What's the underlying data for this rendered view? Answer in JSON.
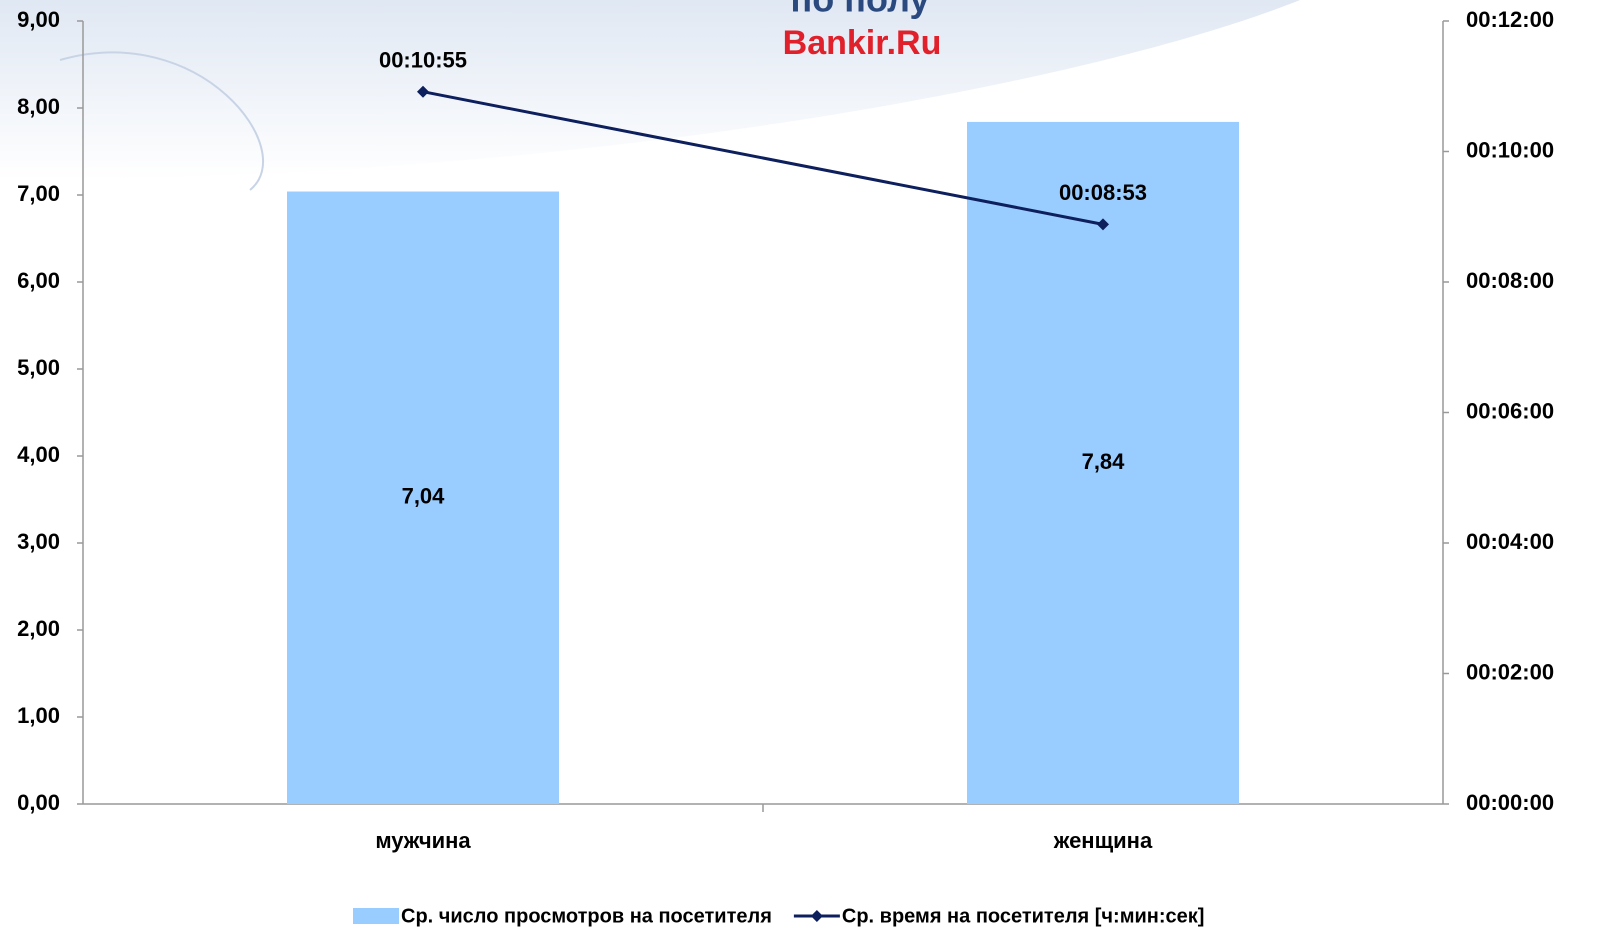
{
  "chart_data": {
    "type": "bar-line",
    "title": "по полу",
    "subtitle": "Bankir.Ru",
    "categories": [
      "мужчина",
      "женщина"
    ],
    "series": [
      {
        "name": "Ср. число просмотров на посетителя",
        "type": "bar",
        "color": "#99ccff",
        "values": [
          7.04,
          7.84
        ],
        "value_labels": [
          "7,04",
          "7,84"
        ]
      },
      {
        "name": "Ср. время на посетителя [ч:мин:сек]",
        "type": "line",
        "axis": "y2",
        "color": "#0d1f5c",
        "values": [
          655,
          533
        ],
        "value_labels": [
          "00:10:55",
          "00:08:53"
        ]
      }
    ],
    "ylim": [
      0,
      9
    ],
    "yticks": [
      {
        "value": 0,
        "label": "0,00"
      },
      {
        "value": 1,
        "label": "1,00"
      },
      {
        "value": 2,
        "label": "2,00"
      },
      {
        "value": 3,
        "label": "3,00"
      },
      {
        "value": 4,
        "label": "4,00"
      },
      {
        "value": 5,
        "label": "5,00"
      },
      {
        "value": 6,
        "label": "6,00"
      },
      {
        "value": 7,
        "label": "7,00"
      },
      {
        "value": 8,
        "label": "8,00"
      },
      {
        "value": 9,
        "label": "9,00"
      }
    ],
    "y2lim": [
      0,
      720
    ],
    "y2ticks": [
      {
        "value": 0,
        "label": "00:00:00"
      },
      {
        "value": 120,
        "label": "00:02:00"
      },
      {
        "value": 240,
        "label": "00:04:00"
      },
      {
        "value": 360,
        "label": "00:06:00"
      },
      {
        "value": 480,
        "label": "00:08:00"
      },
      {
        "value": 600,
        "label": "00:10:00"
      },
      {
        "value": 720,
        "label": "00:12:00"
      }
    ],
    "grid": false,
    "legend": "bottom"
  }
}
